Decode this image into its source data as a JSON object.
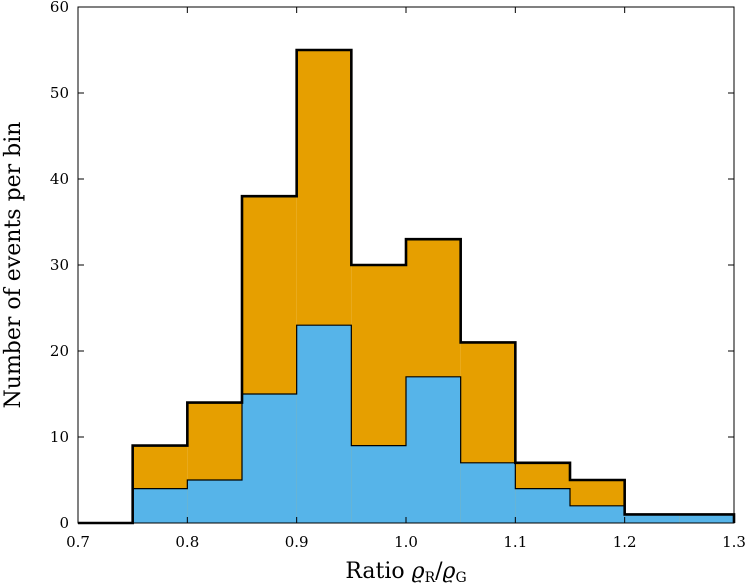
{
  "chart_data": {
    "type": "bar",
    "subtype": "stacked-step-histogram",
    "title": "",
    "xlabel": "Ratio ϱR/ϱG",
    "xlabel_parts": {
      "prefix": "Ratio ",
      "symbol": "ϱ",
      "sub1": "R",
      "slash": "/",
      "sub2": "G"
    },
    "ylabel": "Number of events per bin",
    "xlim": [
      0.7,
      1.3
    ],
    "ylim": [
      0,
      60
    ],
    "xticks": [
      0.7,
      0.8,
      0.9,
      1.0,
      1.1,
      1.2,
      1.3
    ],
    "xtick_labels": [
      "0.7",
      "0.8",
      "0.9",
      "1.0",
      "1.1",
      "1.2",
      "1.3"
    ],
    "yticks": [
      0,
      10,
      20,
      30,
      40,
      50,
      60
    ],
    "ytick_labels": [
      "0",
      "10",
      "20",
      "30",
      "40",
      "50",
      "60"
    ],
    "bin_edges": [
      0.75,
      0.8,
      0.85,
      0.9,
      0.95,
      1.0,
      1.05,
      1.1,
      1.15,
      1.2,
      1.25,
      1.3
    ],
    "series": [
      {
        "values": [
          9,
          14,
          38,
          55,
          30,
          33,
          21,
          7,
          5,
          1,
          1
        ],
        "color": "#e69f00",
        "edge": "#000000"
      },
      {
        "values": [
          4,
          5,
          15,
          23,
          9,
          17,
          7,
          4,
          2,
          1,
          1
        ],
        "color": "#56b4e9",
        "edge": "#000000"
      }
    ],
    "grid": false,
    "legend": "none"
  }
}
